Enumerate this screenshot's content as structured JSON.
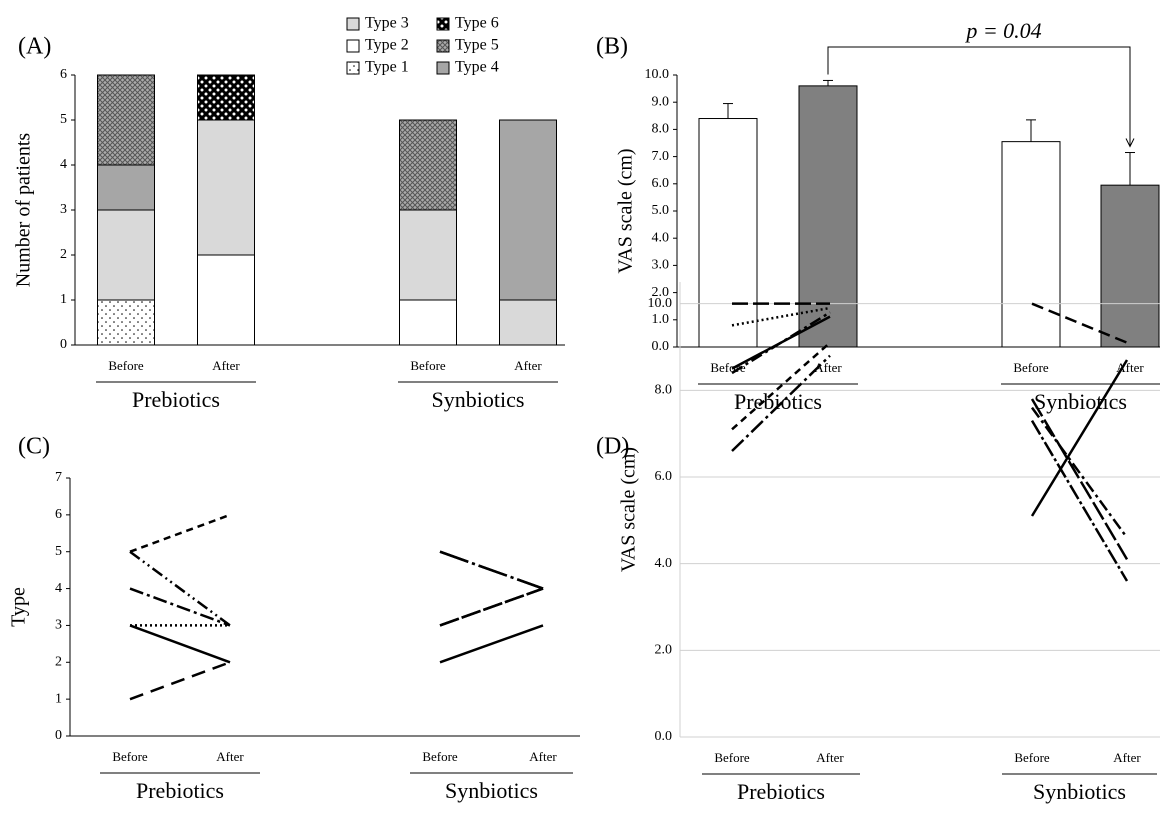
{
  "chart_data": [
    {
      "type": "stacked-bar",
      "panel": "(A)",
      "ylabel": "Number of patients",
      "categories": [
        "Before",
        "After",
        "Before",
        "After"
      ],
      "groups": [
        "Prebiotics",
        "Synbiotics"
      ],
      "series": [
        {
          "name": "Type 1",
          "color": "#ffffff",
          "pattern": "dots",
          "values": [
            1,
            0,
            0,
            0
          ]
        },
        {
          "name": "Type 2",
          "color": "#ffffff",
          "values": [
            0,
            2,
            1,
            0
          ]
        },
        {
          "name": "Type 3",
          "color": "#d9d9d9",
          "values": [
            2,
            3,
            2,
            1
          ]
        },
        {
          "name": "Type 4",
          "color": "#a6a6a6",
          "values": [
            1,
            0,
            0,
            4
          ]
        },
        {
          "name": "Type 5",
          "color": "#ffffff",
          "pattern": "crosshatch",
          "values": [
            2,
            0,
            2,
            0
          ]
        },
        {
          "name": "Type 6",
          "color": "#ffffff",
          "pattern": "checker",
          "values": [
            0,
            1,
            0,
            0
          ]
        }
      ],
      "ylim": [
        0,
        6
      ],
      "yticks": [
        0,
        1,
        2,
        3,
        4,
        5,
        6
      ],
      "grid": false
    },
    {
      "type": "bar",
      "panel": "(B)",
      "ylabel": "VAS scale (cm)",
      "categories": [
        "Before",
        "After",
        "Before",
        "After"
      ],
      "groups": [
        "Prebiotics",
        "Synbiotics"
      ],
      "values": [
        8.4,
        9.6,
        7.55,
        5.95
      ],
      "errors": [
        0.55,
        0.2,
        0.8,
        1.2
      ],
      "colors": [
        "#ffffff",
        "#808080",
        "#ffffff",
        "#808080"
      ],
      "annotation": "p = 0.04",
      "ylim": [
        0,
        10
      ],
      "yticks": [
        {
          "value": 0,
          "label": "0.0"
        },
        {
          "value": 1,
          "label": "1.0"
        },
        {
          "value": 2,
          "label": "2.0"
        },
        {
          "value": 3,
          "label": "3.0"
        },
        {
          "value": 4,
          "label": "4.0"
        },
        {
          "value": 5,
          "label": "5.0"
        },
        {
          "value": 6,
          "label": "6.0"
        },
        {
          "value": 7,
          "label": "7.0"
        },
        {
          "value": 8,
          "label": "8.0"
        },
        {
          "value": 9,
          "label": "9.0"
        },
        {
          "value": 10,
          "label": "10.0"
        }
      ],
      "grid": false
    },
    {
      "type": "line",
      "panel": "(C)",
      "ylabel": "Type",
      "categories": [
        "Before",
        "After",
        "Before",
        "After"
      ],
      "groups": [
        "Prebiotics",
        "Synbiotics"
      ],
      "series": [
        {
          "dash": "7,5",
          "values": [
            5,
            6,
            null,
            null
          ]
        },
        {
          "dash": "12,4,2,4,2,4",
          "values": [
            5,
            3,
            null,
            null
          ]
        },
        {
          "dash": "14,4,3,4",
          "values": [
            4,
            3,
            null,
            null
          ]
        },
        {
          "dash": "2,3",
          "values": [
            3,
            3,
            null,
            null
          ]
        },
        {
          "dash": "none",
          "values": [
            3,
            2,
            null,
            null
          ]
        },
        {
          "dash": "14,8",
          "values": [
            1,
            2,
            null,
            null
          ]
        },
        {
          "dash": "none",
          "values": [
            null,
            null,
            2,
            3
          ]
        },
        {
          "dash": "20,3",
          "values": [
            null,
            null,
            3,
            4
          ]
        },
        {
          "dash": "20,3",
          "values": [
            null,
            null,
            3,
            4
          ]
        },
        {
          "dash": "30,4,3,4",
          "values": [
            null,
            null,
            5,
            4
          ]
        },
        {
          "dash": "30,4,3,4",
          "values": [
            null,
            null,
            5,
            4
          ]
        }
      ],
      "ylim": [
        0,
        7
      ],
      "yticks": [
        0,
        1,
        2,
        3,
        4,
        5,
        6,
        7
      ],
      "grid": false
    },
    {
      "type": "line",
      "panel": "(D)",
      "ylabel": "VAS scale (cm)",
      "categories": [
        "Before",
        "After",
        "Before",
        "After"
      ],
      "groups": [
        "Prebiotics",
        "Synbiotics"
      ],
      "series": [
        {
          "dash": "16,5",
          "values": [
            10,
            10,
            null,
            null
          ]
        },
        {
          "dash": "2,3",
          "values": [
            9.5,
            9.9,
            null,
            null
          ]
        },
        {
          "dash": "none",
          "values": [
            8.5,
            9.7,
            null,
            null
          ]
        },
        {
          "dash": "12,4,3,4",
          "values": [
            8.4,
            9.8,
            null,
            null
          ]
        },
        {
          "dash": "7,5",
          "values": [
            7.1,
            9.1,
            null,
            null
          ]
        },
        {
          "dash": "16,4,3,4",
          "values": [
            6.6,
            8.8,
            null,
            null
          ]
        },
        {
          "dash": "12,6",
          "values": [
            null,
            null,
            10,
            9.1
          ]
        },
        {
          "dash": "20,4",
          "values": [
            null,
            null,
            7.8,
            4.1
          ]
        },
        {
          "dash": "12,4,3,4",
          "values": [
            null,
            null,
            7.6,
            4.6
          ]
        },
        {
          "dash": "16,3,3,3",
          "values": [
            null,
            null,
            7.3,
            3.6
          ]
        },
        {
          "dash": "none",
          "values": [
            null,
            null,
            5.1,
            8.7
          ]
        }
      ],
      "ylim": [
        0,
        10.5
      ],
      "yticks": [
        {
          "value": 0,
          "label": "0.0"
        },
        {
          "value": 2,
          "label": "2.0"
        },
        {
          "value": 4,
          "label": "4.0"
        },
        {
          "value": 6,
          "label": "6.0"
        },
        {
          "value": 8,
          "label": "8.0"
        },
        {
          "value": 10,
          "label": "10.0"
        }
      ],
      "grid": true
    }
  ]
}
